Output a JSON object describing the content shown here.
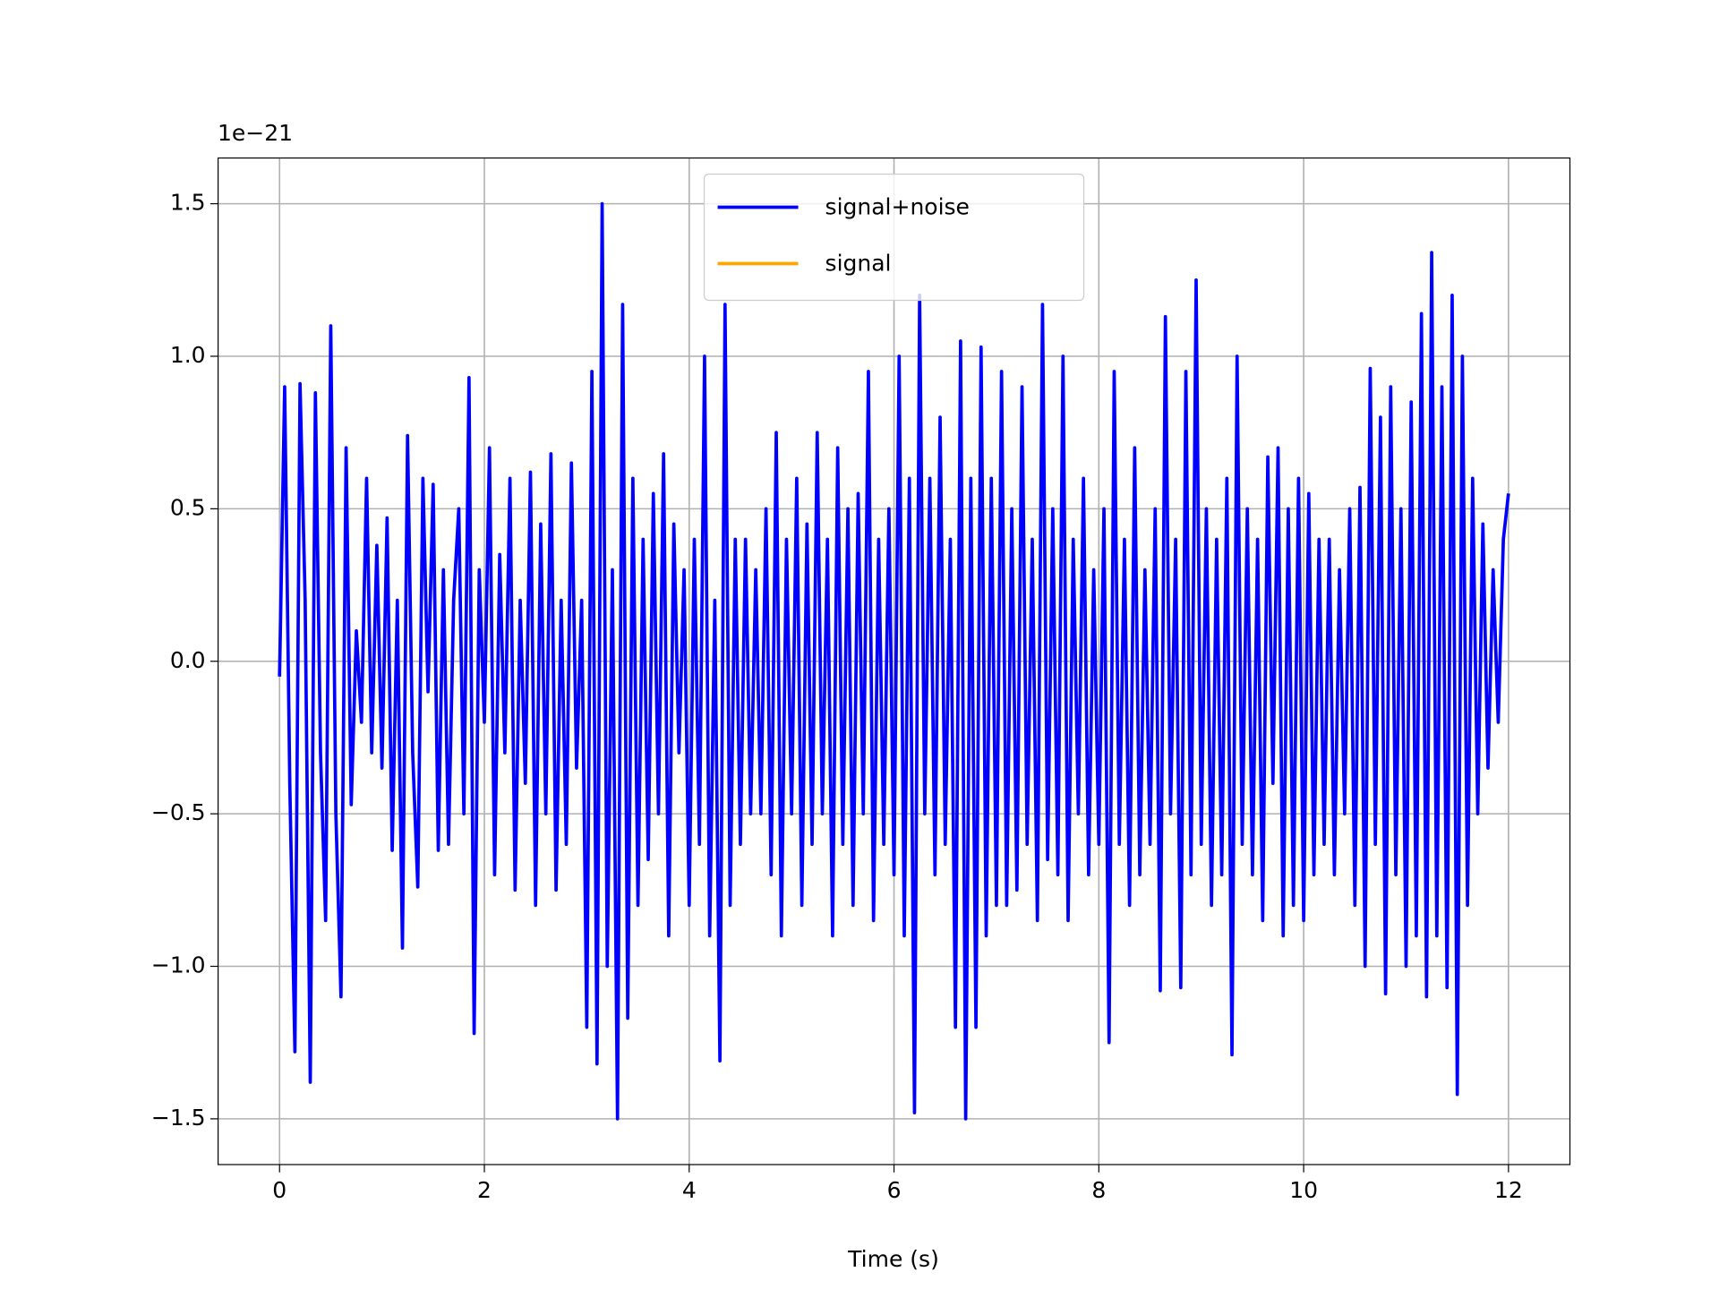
{
  "chart_data": {
    "type": "line",
    "y_offset_label": "1e−21",
    "xlabel": "Time (s)",
    "x": [
      0,
      0.05,
      0.1,
      0.15,
      0.2,
      0.25,
      0.3,
      0.35,
      0.4,
      0.45,
      0.5,
      0.55,
      0.6,
      0.65,
      0.7,
      0.75,
      0.8,
      0.85,
      0.9,
      0.95,
      1,
      1.05,
      1.1,
      1.15,
      1.2,
      1.25,
      1.3,
      1.35,
      1.4,
      1.45,
      1.5,
      1.55,
      1.6,
      1.65,
      1.7,
      1.75,
      1.8,
      1.85,
      1.9,
      1.95,
      2,
      2.05,
      2.1,
      2.15,
      2.2,
      2.25,
      2.3,
      2.35,
      2.4,
      2.45,
      2.5,
      2.55,
      2.6,
      2.65,
      2.7,
      2.75,
      2.8,
      2.85,
      2.9,
      2.95,
      3,
      3.05,
      3.1,
      3.15,
      3.2,
      3.25,
      3.3,
      3.35,
      3.4,
      3.45,
      3.5,
      3.55,
      3.6,
      3.65,
      3.7,
      3.75,
      3.8,
      3.85,
      3.9,
      3.95,
      4,
      4.05,
      4.1,
      4.15,
      4.2,
      4.25,
      4.3,
      4.35,
      4.4,
      4.45,
      4.5,
      4.55,
      4.6,
      4.65,
      4.7,
      4.75,
      4.8,
      4.85,
      4.9,
      4.95,
      5,
      5.05,
      5.1,
      5.15,
      5.2,
      5.25,
      5.3,
      5.35,
      5.4,
      5.45,
      5.5,
      5.55,
      5.6,
      5.65,
      5.7,
      5.75,
      5.8,
      5.85,
      5.9,
      5.95,
      6,
      6.05,
      6.1,
      6.15,
      6.2,
      6.25,
      6.3,
      6.35,
      6.4,
      6.45,
      6.5,
      6.55,
      6.6,
      6.65,
      6.7,
      6.75,
      6.8,
      6.85,
      6.9,
      6.95,
      7,
      7.05,
      7.1,
      7.15,
      7.2,
      7.25,
      7.3,
      7.35,
      7.4,
      7.45,
      7.5,
      7.55,
      7.6,
      7.65,
      7.7,
      7.75,
      7.8,
      7.85,
      7.9,
      7.95,
      8,
      8.05,
      8.1,
      8.15,
      8.2,
      8.25,
      8.3,
      8.35,
      8.4,
      8.45,
      8.5,
      8.55,
      8.6,
      8.65,
      8.7,
      8.75,
      8.8,
      8.85,
      8.9,
      8.95,
      9,
      9.05,
      9.1,
      9.15,
      9.2,
      9.25,
      9.3,
      9.35,
      9.4,
      9.45,
      9.5,
      9.55,
      9.6,
      9.65,
      9.7,
      9.75,
      9.8,
      9.85,
      9.9,
      9.95,
      10,
      10.05,
      10.1,
      10.15,
      10.2,
      10.25,
      10.3,
      10.35,
      10.4,
      10.45,
      10.5,
      10.55,
      10.6,
      10.65,
      10.7,
      10.75,
      10.8,
      10.85,
      10.9,
      10.95,
      11,
      11.05,
      11.1,
      11.15,
      11.2,
      11.25,
      11.3,
      11.35,
      11.4,
      11.45,
      11.5,
      11.55,
      11.6,
      11.65,
      11.7,
      11.75,
      11.8,
      11.85,
      11.9,
      11.95,
      12
    ],
    "series": [
      {
        "name": "signal+noise",
        "color": "#0000ff",
        "values": [
          -0.05,
          0.9,
          -0.4,
          -1.28,
          0.91,
          0.2,
          -1.38,
          0.88,
          -0.3,
          -0.85,
          1.1,
          -0.5,
          -1.1,
          0.7,
          -0.47,
          0.1,
          -0.2,
          0.6,
          -0.3,
          0.38,
          -0.35,
          0.47,
          -0.62,
          0.2,
          -0.94,
          0.74,
          -0.3,
          -0.74,
          0.6,
          -0.1,
          0.58,
          -0.62,
          0.3,
          -0.6,
          0.2,
          0.5,
          -0.5,
          0.93,
          -1.22,
          0.3,
          -0.2,
          0.7,
          -0.7,
          0.35,
          -0.3,
          0.6,
          -0.75,
          0.2,
          -0.4,
          0.62,
          -0.8,
          0.45,
          -0.5,
          0.68,
          -0.75,
          0.2,
          -0.6,
          0.65,
          -0.35,
          0.2,
          -1.2,
          0.95,
          -1.32,
          1.5,
          -1.0,
          0.3,
          -1.5,
          1.17,
          -1.17,
          0.6,
          -0.8,
          0.4,
          -0.65,
          0.55,
          -0.5,
          0.68,
          -0.9,
          0.45,
          -0.3,
          0.3,
          -0.8,
          0.4,
          -0.6,
          1.0,
          -0.9,
          0.2,
          -1.31,
          1.17,
          -0.8,
          0.4,
          -0.6,
          0.4,
          -0.5,
          0.3,
          -0.5,
          0.5,
          -0.7,
          0.75,
          -0.9,
          0.4,
          -0.5,
          0.6,
          -0.8,
          0.45,
          -0.6,
          0.75,
          -0.5,
          0.4,
          -0.9,
          0.7,
          -0.6,
          0.5,
          -0.8,
          0.55,
          -0.5,
          0.95,
          -0.85,
          0.4,
          -0.6,
          0.5,
          -0.7,
          1.0,
          -0.9,
          0.6,
          -1.48,
          1.2,
          -0.5,
          0.6,
          -0.7,
          0.8,
          -0.6,
          0.4,
          -1.2,
          1.05,
          -1.5,
          0.6,
          -1.2,
          1.03,
          -0.9,
          0.6,
          -0.8,
          0.95,
          -0.8,
          0.5,
          -0.75,
          0.9,
          -0.6,
          0.4,
          -0.85,
          1.17,
          -0.65,
          0.5,
          -0.7,
          1.0,
          -0.85,
          0.4,
          -0.5,
          0.6,
          -0.7,
          0.3,
          -0.6,
          0.5,
          -1.25,
          0.95,
          -0.6,
          0.4,
          -0.8,
          0.7,
          -0.7,
          0.3,
          -0.6,
          0.5,
          -1.08,
          1.13,
          -0.5,
          0.4,
          -1.07,
          0.95,
          -0.7,
          1.25,
          -0.6,
          0.5,
          -0.8,
          0.4,
          -0.7,
          0.6,
          -1.29,
          1.0,
          -0.6,
          0.5,
          -0.7,
          0.4,
          -0.85,
          0.67,
          -0.4,
          0.7,
          -0.9,
          0.5,
          -0.8,
          0.6,
          -0.85,
          0.55,
          -0.7,
          0.4,
          -0.6,
          0.4,
          -0.7,
          0.3,
          -0.5,
          0.5,
          -0.8,
          0.57,
          -1.0,
          0.96,
          -0.6,
          0.8,
          -1.09,
          0.9,
          -0.7,
          0.5,
          -1.0,
          0.85,
          -0.9,
          1.14,
          -1.1,
          1.34,
          -0.9,
          0.9,
          -1.07,
          1.2,
          -1.42,
          1.0,
          -0.8,
          0.6,
          -0.5,
          0.45,
          -0.35,
          0.3,
          -0.2,
          0.4,
          0.55
        ]
      },
      {
        "name": "signal",
        "color": "#ffa500",
        "values": [
          null,
          null,
          null,
          null,
          null,
          null,
          null,
          null,
          null,
          null,
          null,
          null,
          null,
          null,
          null,
          null,
          null,
          null,
          null,
          null,
          null,
          null,
          null,
          null,
          null,
          null,
          null,
          null,
          null,
          null,
          null,
          null,
          null,
          null,
          null,
          null,
          null,
          null,
          null,
          null,
          null,
          null,
          null,
          null,
          null,
          null,
          null,
          null,
          null,
          null,
          null,
          null,
          null,
          null,
          null,
          null,
          null,
          null,
          null,
          null,
          null,
          null,
          null,
          null,
          null,
          null,
          null,
          null,
          null,
          null,
          null,
          null,
          null,
          null,
          null,
          null,
          null,
          null,
          null,
          null,
          null,
          null,
          null,
          null,
          null,
          null,
          null,
          null,
          null,
          null,
          null,
          null,
          null,
          null,
          null,
          null,
          null,
          null,
          null,
          null,
          null,
          null,
          null,
          null,
          null,
          null,
          null,
          null,
          null,
          null,
          null,
          null,
          null,
          null,
          null,
          null,
          null,
          null,
          null,
          null,
          null,
          null,
          null,
          null,
          null,
          null,
          null,
          null,
          null,
          null,
          null,
          null,
          null,
          null,
          null,
          null,
          null,
          null,
          null,
          null,
          null,
          null,
          null,
          null,
          null,
          null,
          null,
          null,
          null,
          null,
          null,
          null,
          null,
          null,
          null,
          null,
          null,
          null,
          null,
          null,
          null,
          null,
          null,
          null,
          null,
          null,
          null,
          null,
          null,
          null,
          null,
          null,
          null,
          null,
          null,
          null,
          null,
          null,
          null,
          null,
          null,
          null,
          null,
          null,
          null,
          null,
          null,
          null,
          null,
          null,
          null,
          null,
          null,
          null,
          null,
          null,
          null,
          null,
          null,
          null,
          null,
          null,
          null,
          null,
          null,
          null,
          null,
          null,
          null,
          null,
          null,
          null,
          null,
          null,
          null,
          null,
          null,
          null,
          null,
          null,
          null,
          null,
          null,
          null,
          null,
          null,
          null,
          null,
          null,
          null,
          null,
          null,
          null,
          null,
          null,
          null,
          null,
          null,
          null,
          null,
          null
        ]
      }
    ],
    "xlim": [
      -0.6,
      12.6
    ],
    "xticks": [
      0,
      2,
      4,
      6,
      8,
      10,
      12
    ],
    "ylim": [
      -1.65,
      1.65
    ],
    "yticks": [
      {
        "value": -1.5,
        "label": "−1.5"
      },
      {
        "value": -1.0,
        "label": "−1.0"
      },
      {
        "value": -0.5,
        "label": "−0.5"
      },
      {
        "value": 0.0,
        "label": "0.0"
      },
      0.5,
      {
        "value": 1.0,
        "label": "1.0"
      },
      1.5
    ],
    "grid": true,
    "legend": "upper center"
  }
}
